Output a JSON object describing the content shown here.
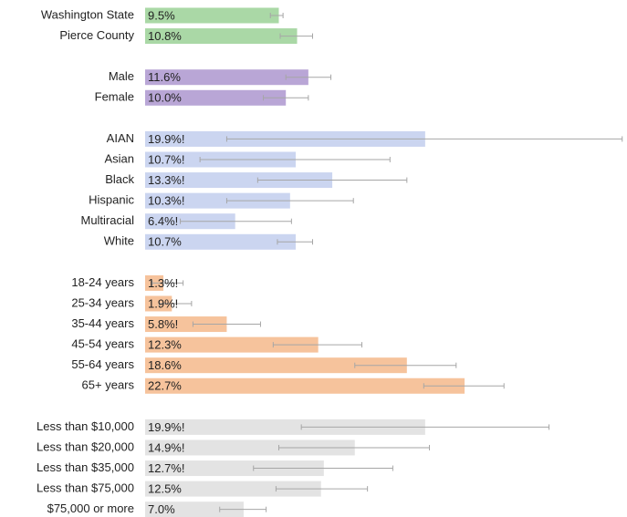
{
  "chart_data": {
    "type": "bar",
    "orientation": "horizontal",
    "groups": [
      {
        "color": "#aad8a6",
        "categories": [
          "Washington State",
          "Pierce County"
        ],
        "values": [
          9.5,
          10.8
        ],
        "value_labels": [
          "9.5%",
          "10.8%"
        ],
        "ci_low": [
          8.9,
          9.6
        ],
        "ci_high": [
          9.8,
          11.9
        ]
      },
      {
        "color": "#b9a6d6",
        "categories": [
          "Male",
          "Female"
        ],
        "values": [
          11.6,
          10.0
        ],
        "value_labels": [
          "11.6%",
          "10.0%"
        ],
        "ci_low": [
          10.0,
          8.4
        ],
        "ci_high": [
          13.2,
          11.6
        ]
      },
      {
        "color": "#cbd5f0",
        "categories": [
          "AIAN",
          "Asian",
          "Black",
          "Hispanic",
          "Multiracial",
          "White"
        ],
        "values": [
          19.9,
          10.7,
          13.3,
          10.3,
          6.4,
          10.7
        ],
        "value_labels": [
          "19.9%!",
          "10.7%!",
          "13.3%!",
          "10.3%!",
          "6.4%!",
          "10.7%"
        ],
        "ci_low": [
          5.8,
          3.9,
          8.0,
          5.8,
          2.5,
          9.4
        ],
        "ci_high": [
          33.9,
          17.4,
          18.6,
          14.8,
          10.4,
          11.9
        ]
      },
      {
        "color": "#f6c39c",
        "categories": [
          "18-24 years",
          "25-34 years",
          "35-44 years",
          "45-54 years",
          "55-64 years",
          "65+ years"
        ],
        "values": [
          1.3,
          1.9,
          5.8,
          12.3,
          18.6,
          22.7
        ],
        "value_labels": [
          "1.3%!",
          "1.9%!",
          "5.8%!",
          "12.3%",
          "18.6%",
          "22.7%"
        ],
        "ci_low": [
          0.5,
          1.0,
          3.4,
          9.1,
          14.9,
          19.8
        ],
        "ci_high": [
          2.7,
          3.3,
          8.2,
          15.4,
          22.1,
          25.5
        ]
      },
      {
        "color": "#e3e3e3",
        "categories": [
          "Less than $10,000",
          "Less than $20,000",
          "Less than $35,000",
          "Less than $75,000",
          "$75,000 or more"
        ],
        "values": [
          19.9,
          14.9,
          12.7,
          12.5,
          7.0
        ],
        "value_labels": [
          "19.9%!",
          "14.9%!",
          "12.7%!",
          "12.5%",
          "7.0%"
        ],
        "ci_low": [
          11.1,
          9.5,
          7.7,
          9.3,
          5.3
        ],
        "ci_high": [
          28.7,
          20.2,
          17.6,
          15.8,
          8.6
        ]
      }
    ]
  }
}
